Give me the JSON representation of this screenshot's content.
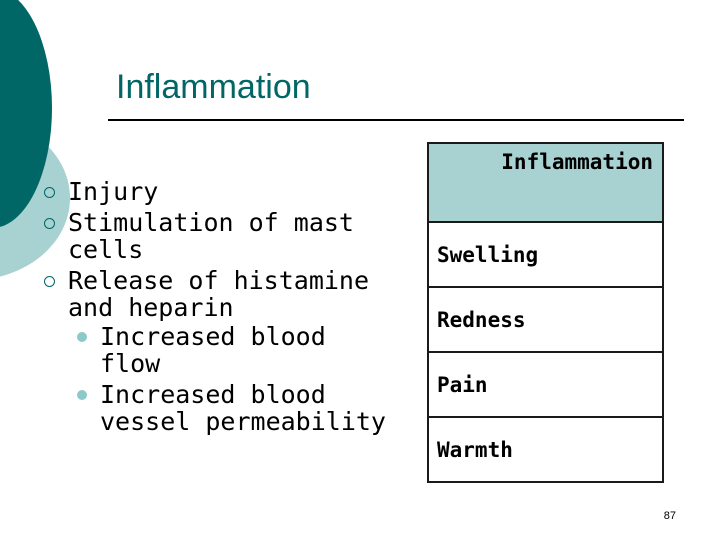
{
  "slide": {
    "title": "Inflammation",
    "bullets": [
      {
        "text": "Injury",
        "children": []
      },
      {
        "text": "Stimulation of mast cells",
        "children": []
      },
      {
        "text": "Release of histamine and heparin",
        "children": [
          "Increased blood flow",
          "Increased blood vessel permeability"
        ]
      }
    ],
    "table": {
      "header": "Inflammation",
      "rows": [
        "Swelling",
        "Redness",
        "Pain",
        "Warmth"
      ]
    },
    "page_number": "87"
  },
  "colors": {
    "title": "#006666",
    "decoration_dark": "#006666",
    "decoration_light": "#a8d1d1",
    "table_header_bg": "#a8d1d1",
    "bullet_marker": "#006666",
    "sub_bullet_marker": "#8dc9c9"
  },
  "icons": {
    "bullet": "hollow-circle-icon",
    "sub_bullet": "filled-circle-icon"
  }
}
